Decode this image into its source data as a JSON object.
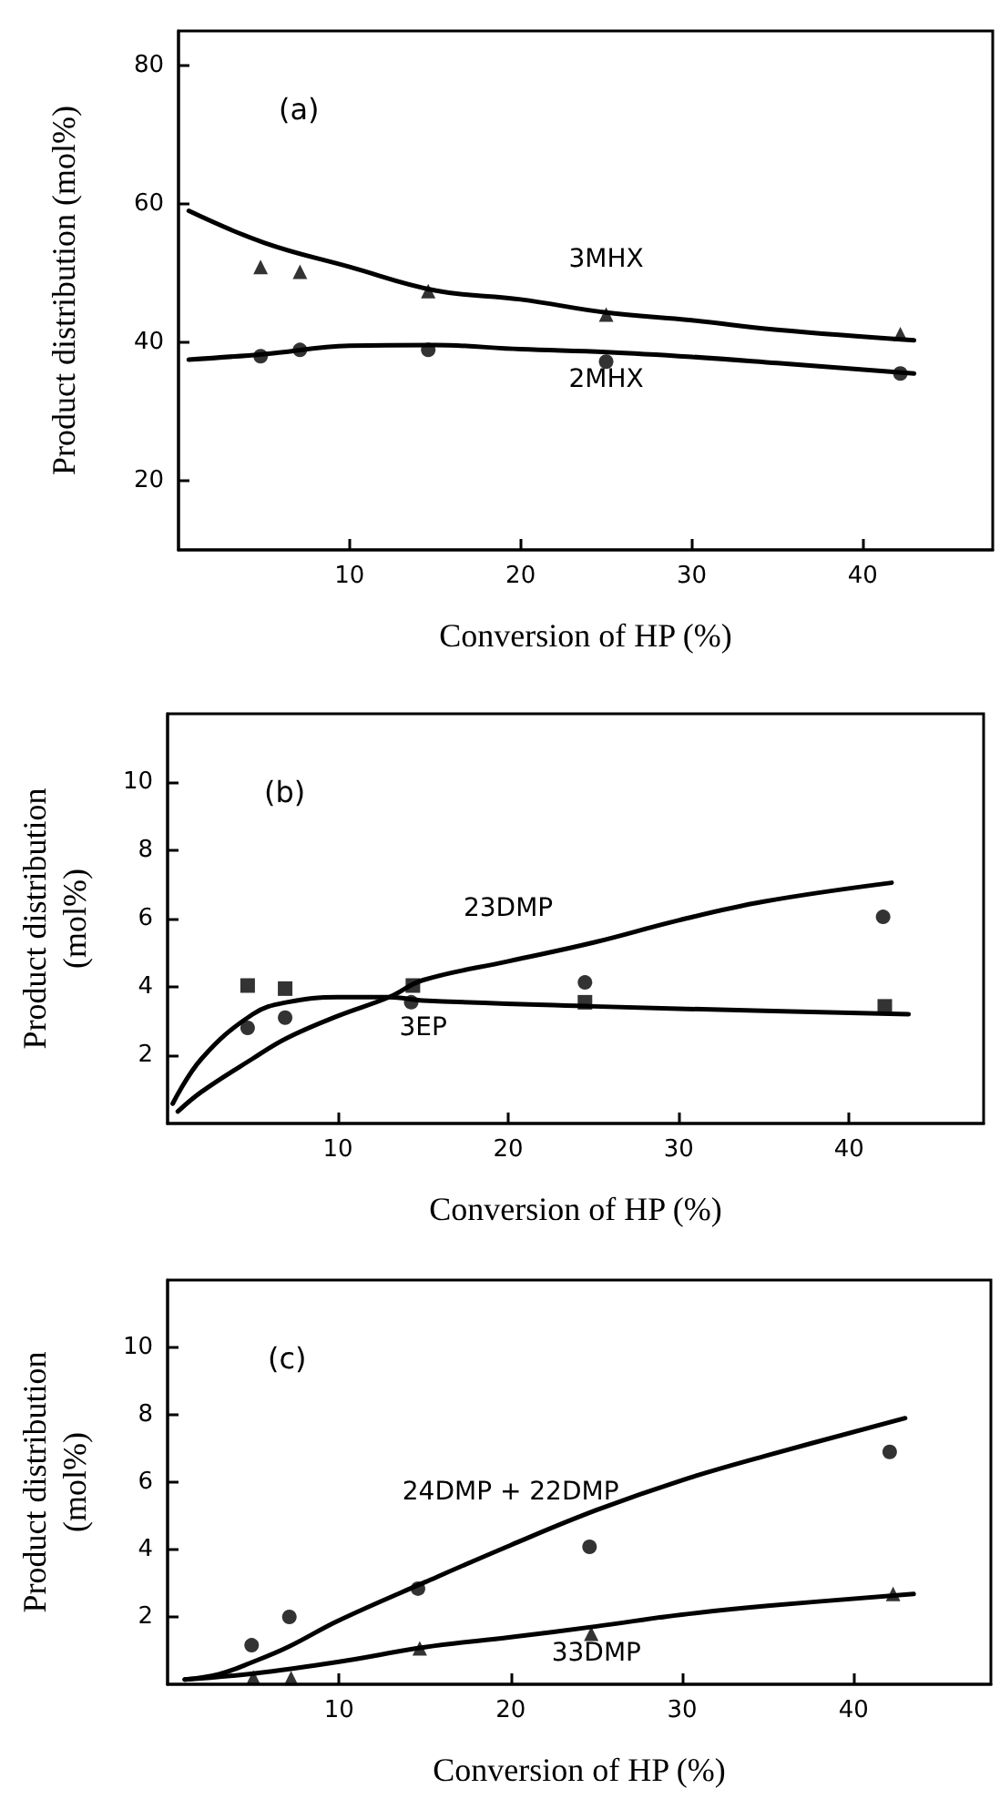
{
  "chart_data": [
    {
      "type": "line",
      "title": "(a)",
      "xlabel": "Conversion of HP (%)",
      "ylabel": "Product distribution (mol%)",
      "xlim": [
        0,
        47.6
      ],
      "ylim": [
        10,
        85
      ],
      "xticks": [
        10,
        20,
        30,
        40
      ],
      "yticks": [
        20,
        40,
        60,
        80
      ],
      "grid": false,
      "legend": false,
      "line_style": "solid",
      "series": [
        {
          "name": "3MHX",
          "type": "line",
          "color": "#000000",
          "marker": "none",
          "x": [
            0.6,
            5,
            10,
            15,
            20,
            25,
            30,
            35,
            43
          ],
          "values": [
            59,
            54.4,
            50.9,
            47.5,
            46.2,
            44.3,
            43.2,
            41.8,
            40.3
          ]
        },
        {
          "name": "2MHX",
          "type": "line",
          "color": "#000000",
          "marker": "none",
          "x": [
            0.6,
            5,
            10,
            15,
            20,
            25,
            30,
            35,
            43
          ],
          "values": [
            37.5,
            38.3,
            39.5,
            39.6,
            39,
            38.6,
            37.9,
            37,
            35.5
          ]
        },
        {
          "type": "scatter",
          "color": "#000000",
          "marker": "triangle",
          "x": [
            4.8,
            7.1,
            14.6,
            25,
            42.2
          ],
          "values": [
            50.9,
            50.2,
            47.4,
            44,
            41.2
          ]
        },
        {
          "type": "scatter",
          "color": "#000000",
          "marker": "circle",
          "x": [
            4.8,
            7.1,
            14.6,
            25,
            42.2
          ],
          "values": [
            38,
            38.9,
            38.9,
            37.2,
            35.5
          ]
        }
      ]
    },
    {
      "type": "line",
      "title": "(b)",
      "xlabel": "Conversion of HP (%)",
      "ylabel": "Product distribution\n(mol%)",
      "xlim": [
        0,
        47.9
      ],
      "ylim": [
        0,
        12
      ],
      "xticks": [
        10,
        20,
        30,
        40
      ],
      "yticks": [
        2,
        4,
        6,
        8,
        10
      ],
      "grid": false,
      "legend": false,
      "line_style": "solid",
      "series": [
        {
          "name": "23DMP",
          "type": "line",
          "color": "#000000",
          "marker": "none",
          "x": [
            0.6,
            2,
            5,
            7,
            10,
            13,
            15,
            20,
            25,
            30,
            35,
            42.5
          ],
          "values": [
            0.35,
            0.93,
            1.9,
            2.5,
            3.15,
            3.7,
            4.2,
            4.75,
            5.3,
            5.95,
            6.5,
            7.05
          ]
        },
        {
          "name": "3EP",
          "type": "line",
          "color": "#000000",
          "marker": "none",
          "x": [
            0.3,
            2,
            5,
            7,
            10,
            13,
            15,
            25,
            35,
            43.5
          ],
          "values": [
            0.58,
            1.9,
            3.2,
            3.55,
            3.7,
            3.7,
            3.6,
            3.43,
            3.3,
            3.2
          ]
        },
        {
          "type": "scatter",
          "color": "#000000",
          "marker": "circle",
          "x": [
            4.7,
            6.9,
            14.3,
            24.5,
            42
          ],
          "values": [
            2.8,
            3.1,
            3.55,
            4.13,
            6.05
          ]
        },
        {
          "type": "scatter",
          "color": "#000000",
          "marker": "square",
          "x": [
            4.7,
            6.9,
            14.4,
            24.5,
            42.1
          ],
          "values": [
            4.04,
            3.95,
            4.04,
            3.55,
            3.43
          ]
        }
      ]
    },
    {
      "type": "line",
      "title": "(c)",
      "xlabel": "Conversion of HP (%)",
      "ylabel": "Product distribution\n(mol%)",
      "xlim": [
        0,
        48
      ],
      "ylim": [
        0,
        12
      ],
      "xticks": [
        10,
        20,
        30,
        40
      ],
      "yticks": [
        2,
        4,
        6,
        8,
        10
      ],
      "grid": false,
      "legend": false,
      "line_style": "solid",
      "series": [
        {
          "name": "24DMP + 22DMP",
          "type": "line",
          "color": "#000000",
          "marker": "none",
          "x": [
            1,
            3,
            5,
            7,
            10,
            15,
            20,
            25,
            30,
            35,
            43
          ],
          "values": [
            0.14,
            0.3,
            0.67,
            1.1,
            1.9,
            3.03,
            4.13,
            5.17,
            6.06,
            6.8,
            7.9
          ]
        },
        {
          "name": "33DMP",
          "type": "line",
          "color": "#000000",
          "marker": "none",
          "x": [
            1,
            5,
            10,
            15,
            20,
            25,
            30,
            35,
            43.5
          ],
          "values": [
            0.14,
            0.32,
            0.67,
            1.1,
            1.4,
            1.72,
            2.07,
            2.33,
            2.68
          ]
        },
        {
          "type": "scatter",
          "color": "#000000",
          "marker": "circle",
          "x": [
            4.9,
            7.1,
            14.6,
            24.6,
            42.1
          ],
          "values": [
            1.16,
            2.0,
            2.84,
            4.08,
            6.9
          ]
        },
        {
          "type": "scatter",
          "color": "#000000",
          "marker": "triangle",
          "x": [
            5.0,
            7.2,
            14.7,
            24.7,
            42.3
          ],
          "values": [
            0.2,
            0.18,
            1.07,
            1.5,
            2.68
          ]
        }
      ]
    }
  ]
}
